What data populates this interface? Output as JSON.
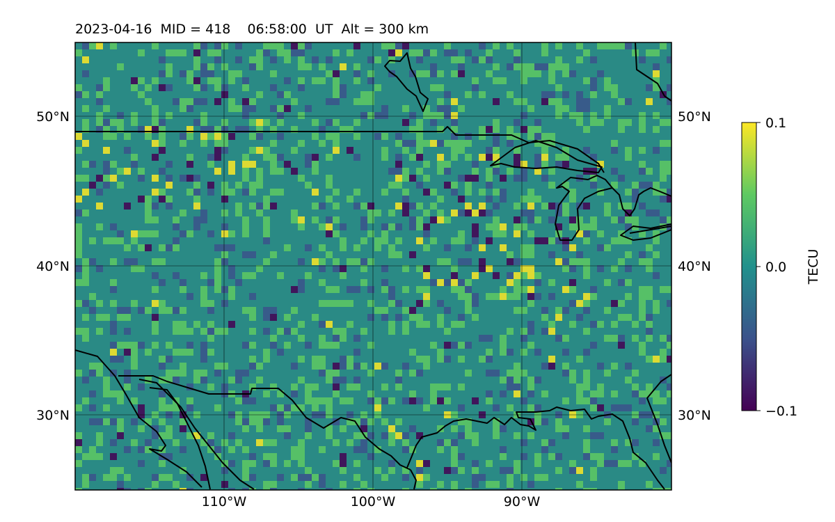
{
  "title": "2023-04-16  MID = 418    06:58:00  UT  Alt = 300 km",
  "map": {
    "lon_range": [
      -120,
      -80
    ],
    "lat_range": [
      25,
      55
    ],
    "lat_labels": [
      "50°N",
      "40°N",
      "30°N"
    ],
    "lat_values": [
      50,
      40,
      30
    ],
    "lon_labels": [
      "110°W",
      "100°W",
      "90°W"
    ],
    "lon_values": [
      -110,
      -100,
      -90
    ],
    "grid": true
  },
  "colorbar": {
    "label": "TECU",
    "min": -0.1,
    "max": 0.1,
    "ticks": [
      "0.1",
      "0.0",
      "−0.1"
    ],
    "colormap": "viridis",
    "colors": [
      "#440154",
      "#3b528b",
      "#21918c",
      "#5ec962",
      "#fde725"
    ]
  },
  "colors": {
    "coastline": "#000000",
    "gridline": "#000000",
    "background_field": "#2a8a85"
  }
}
